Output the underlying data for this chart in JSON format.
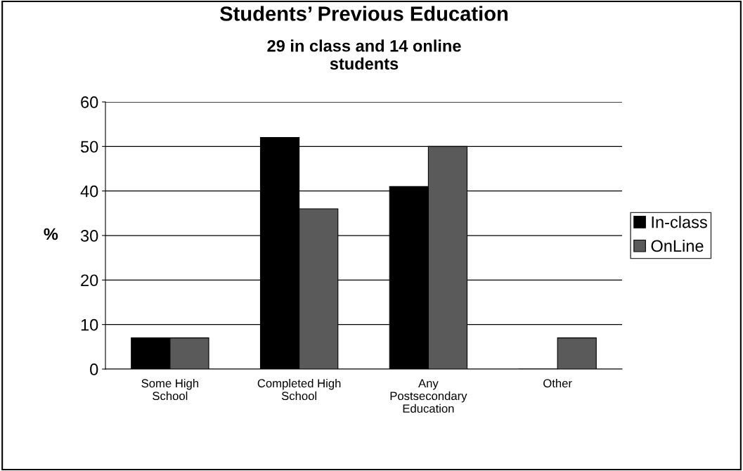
{
  "chart_data": {
    "type": "bar",
    "title": "Students’ Previous Education",
    "subtitle": "29 in class and 14 online\nstudents",
    "ylabel": "%",
    "categories": [
      "Some High\nSchool",
      "Completed High\nSchool",
      "Any\nPostsecondary\nEducation",
      "Other"
    ],
    "series": [
      {
        "name": "In-class",
        "color": "#000000",
        "values": [
          7,
          52,
          41,
          0
        ]
      },
      {
        "name": "OnLine",
        "color": "#5a5a5a",
        "values": [
          7,
          36,
          50,
          7
        ]
      }
    ],
    "ylim": [
      0,
      60
    ],
    "yticks": [
      0,
      10,
      20,
      30,
      40,
      50,
      60
    ],
    "grid": "y",
    "legend": "right"
  }
}
